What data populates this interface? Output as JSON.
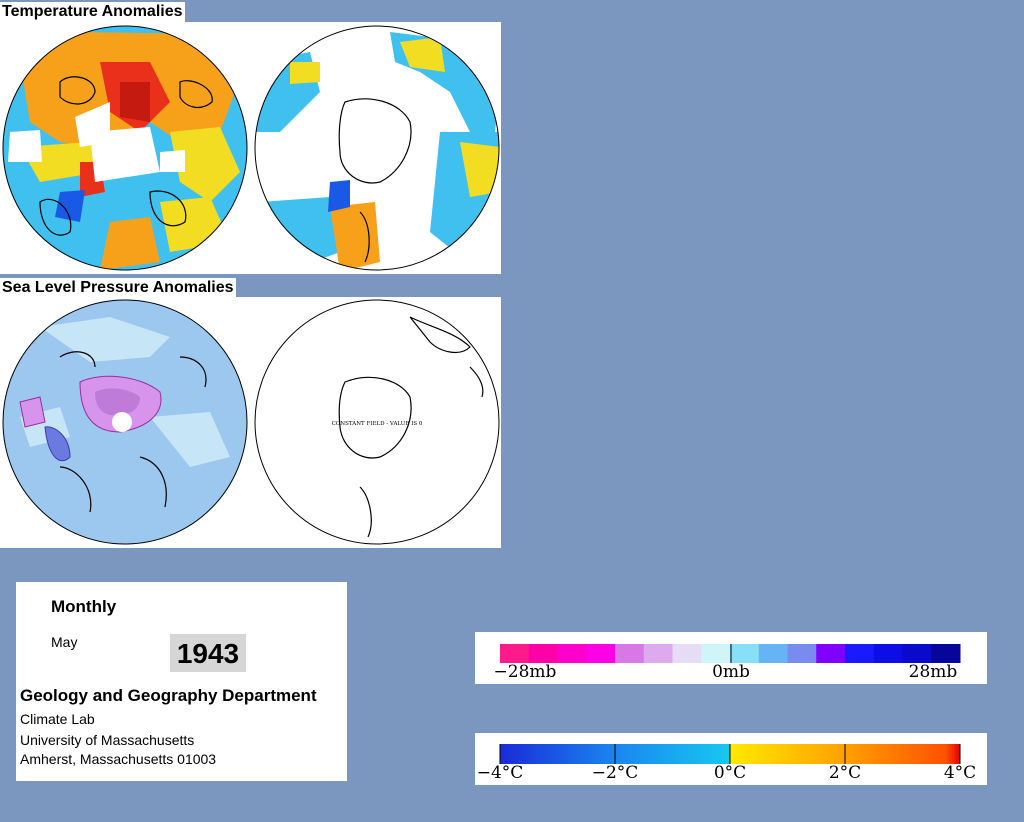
{
  "sections": {
    "temperature_title": "Temperature Anomalies",
    "pressure_title": "Sea Level Pressure Anomalies",
    "constant_field_note": "CONSTANT FIELD - VALUE IS 0"
  },
  "info": {
    "frequency": "Monthly",
    "month": "May",
    "year": "1943",
    "department": "Geology and Geography Department",
    "lab": "Climate Lab",
    "university": "University of Massachusetts",
    "address": "Amherst, Massachusetts 01003"
  },
  "pressure_legend": {
    "labels": [
      "−28mb",
      "0mb",
      "28mb"
    ],
    "colors": [
      "#ff1a8c",
      "#ff00a8",
      "#ff00cc",
      "#ff00e6",
      "#d877e6",
      "#deaaee",
      "#e6dcf6",
      "#cff5f8",
      "#88dff8",
      "#66b4f5",
      "#7a8bef",
      "#8000ff",
      "#1a1aff",
      "#0d0de6",
      "#0a0acc",
      "#06069a"
    ]
  },
  "temperature_legend": {
    "labels": [
      "−4°C",
      "−2°C",
      "0°C",
      "2°C",
      "4°C"
    ],
    "colors": {
      "cold_dark": "#1a2ad8",
      "cold_mid": "#1a86f0",
      "cold_light": "#18c8f0",
      "zero": "#00e6ff",
      "warm_light": "#ffea00",
      "warm_mid": "#ffa000",
      "warm_dark": "#ff5000",
      "hot": "#e60000"
    }
  },
  "map_colors": {
    "temp_blue": "#3fc0ef",
    "temp_orange": "#f7a11b",
    "temp_yellow": "#f3dd22",
    "temp_red": "#e8301a",
    "temp_deep_blue": "#1a58e6",
    "slp_base": "#9cc7ef",
    "slp_light": "#c6e6f7",
    "slp_purple": "#d694ec",
    "slp_dark_blue": "#6b7ae0"
  }
}
